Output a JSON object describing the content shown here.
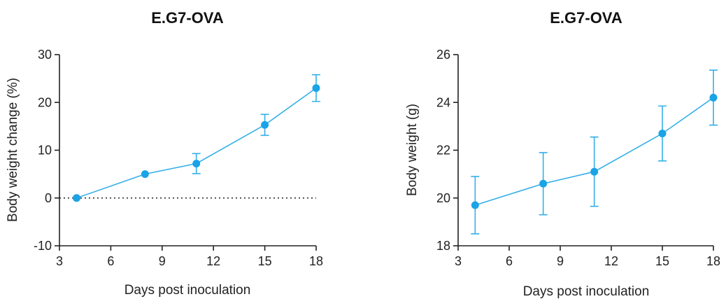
{
  "colors": {
    "series": "#1aa3e6",
    "line": "#36b0e8",
    "axis": "#222222"
  },
  "chart_data": [
    {
      "type": "line",
      "title": "E.G7-OVA",
      "xlabel": "Days post inoculation",
      "ylabel": "Body weight change (%)",
      "xlim": [
        3,
        18
      ],
      "ylim": [
        -10,
        30
      ],
      "xticks": [
        3,
        6,
        9,
        12,
        15,
        18
      ],
      "yticks": [
        -10,
        0,
        10,
        20,
        30
      ],
      "reference_line": {
        "y": 0,
        "style": "dotted"
      },
      "x": [
        4,
        8,
        11,
        15,
        18
      ],
      "y": [
        0,
        5,
        7.2,
        15.3,
        23
      ],
      "error": [
        0,
        0,
        2.1,
        2.2,
        2.8
      ]
    },
    {
      "type": "line",
      "title": "E.G7-OVA",
      "xlabel": "Days post inoculation",
      "ylabel": "Body weight (g)",
      "xlim": [
        3,
        18
      ],
      "ylim": [
        18,
        26
      ],
      "xticks": [
        3,
        6,
        9,
        12,
        15,
        18
      ],
      "yticks": [
        18,
        20,
        22,
        24,
        26
      ],
      "x": [
        4,
        8,
        11,
        15,
        18
      ],
      "y": [
        19.7,
        20.6,
        21.1,
        22.7,
        24.2
      ],
      "error": [
        1.2,
        1.3,
        1.45,
        1.15,
        1.15
      ]
    }
  ]
}
